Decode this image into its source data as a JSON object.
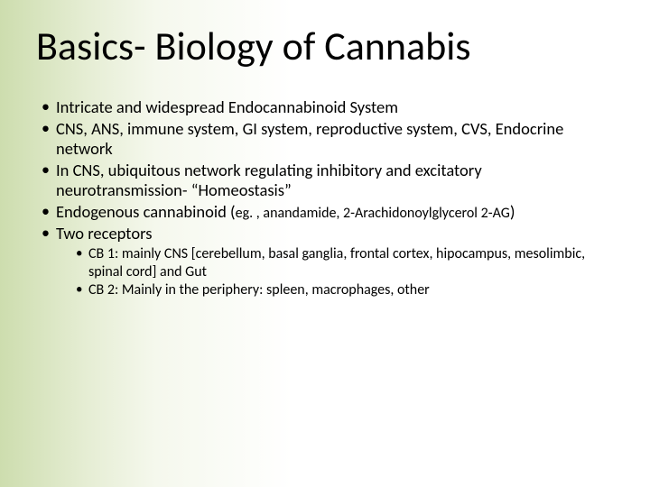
{
  "slide": {
    "background_gradient_colors": [
      "#cdddae",
      "#e5edd3",
      "#f5f8ed",
      "#ffffff"
    ],
    "text_color": "#000000",
    "font_family": "Calibri",
    "title": {
      "text": "Basics- Biology of Cannabis",
      "fontsize": 44,
      "weight": 400
    },
    "bullets": [
      {
        "text": "Intricate and widespread Endocannabinoid System",
        "fontsize": 18.5
      },
      {
        "text": "CNS, ANS, immune system, GI system, reproductive system, CVS, Endocrine network",
        "fontsize": 18.5
      },
      {
        "text": "In CNS, ubiquitous network regulating inhibitory and excitatory neurotransmission- “Homeostasis”",
        "fontsize": 18.5
      },
      {
        "text_main": "Endogenous cannabinoid (",
        "text_small": "eg. , anandamide, 2-Arachidonoylglycerol 2-AG",
        "text_tail": ")",
        "fontsize": 18.5,
        "small_fontsize": 16
      },
      {
        "text": "Two receptors",
        "fontsize": 18.5,
        "sub": [
          {
            "text": "CB 1: mainly CNS [cerebellum, basal ganglia, frontal cortex, hipocampus, mesolimbic, spinal cord] and Gut",
            "fontsize": 16
          },
          {
            "text": "CB 2: Mainly in the periphery: spleen, macrophages, other",
            "fontsize": 16
          }
        ]
      }
    ]
  }
}
